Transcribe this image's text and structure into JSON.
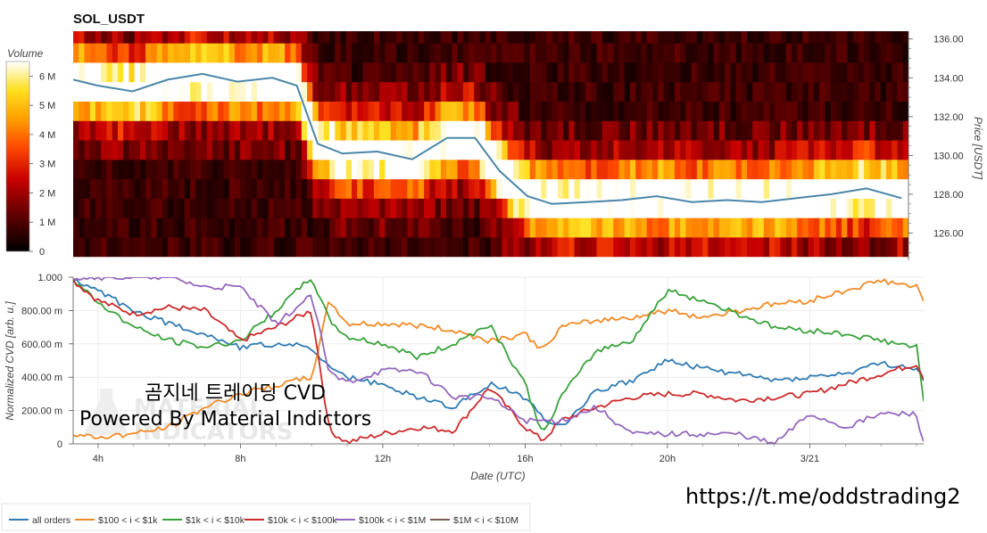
{
  "chart_data": [
    {
      "type": "heatmap",
      "title": "SOL_USDT",
      "colorbar": {
        "label": "Volume",
        "ticks": [
          "0",
          "1 M",
          "2 M",
          "3 M",
          "4 M",
          "5 M",
          "6 M"
        ],
        "range": [
          0,
          6500000
        ]
      },
      "ylabel": "Price [USDT]",
      "yticks": [
        "126.00",
        "128.00",
        "130.00",
        "132.00",
        "134.00",
        "136.00"
      ],
      "ylim": [
        124.6,
        136.4
      ],
      "price_bins": [
        125.3,
        126.3,
        127.3,
        128.3,
        129.3,
        130.3,
        131.3,
        132.3,
        133.3,
        134.3,
        135.3,
        136.3
      ],
      "time_range_hours": [
        3.3,
        27.2
      ],
      "price_series": {
        "name": "Price",
        "color": "#4a86a8",
        "x_hours": [
          3.3,
          4.0,
          5.0,
          6.0,
          7.0,
          8.0,
          9.0,
          9.7,
          10.3,
          11.0,
          12.0,
          13.0,
          14.0,
          14.8,
          15.5,
          16.3,
          17.0,
          18.0,
          19.0,
          20.0,
          21.0,
          22.0,
          23.0,
          24.0,
          25.0,
          26.0,
          27.0
        ],
        "y": [
          133.9,
          133.6,
          133.3,
          133.9,
          134.2,
          133.8,
          134.0,
          133.6,
          130.6,
          130.1,
          130.2,
          129.8,
          130.9,
          130.9,
          129.2,
          127.9,
          127.5,
          127.6,
          127.7,
          127.9,
          127.6,
          127.7,
          127.6,
          127.8,
          128.0,
          128.3,
          127.8
        ]
      }
    },
    {
      "type": "line",
      "xlabel": "Date (UTC)",
      "ylabel": "Normalized CVD [arb. u.]",
      "xticks": [
        "4h",
        "8h",
        "12h",
        "16h",
        "20h",
        "3/21"
      ],
      "xtick_hours": [
        4,
        8,
        12,
        16,
        20,
        24
      ],
      "yticks": [
        "0",
        "200.00 m",
        "400.00 m",
        "600.00 m",
        "800.00 m",
        "1.000"
      ],
      "ylim": [
        0,
        1
      ],
      "xlim": [
        3.3,
        27.2
      ],
      "x_hours": [
        3.3,
        4,
        5,
        6,
        7,
        8,
        9,
        10,
        10.5,
        11,
        12,
        13,
        14,
        15,
        16,
        16.5,
        17,
        18,
        19,
        20,
        21,
        22,
        23,
        24,
        25,
        26,
        27,
        27.2
      ],
      "series": [
        {
          "name": "all orders",
          "color": "#2f7bb3",
          "values": [
            0.98,
            0.92,
            0.8,
            0.72,
            0.66,
            0.58,
            0.6,
            0.58,
            0.45,
            0.4,
            0.35,
            0.28,
            0.22,
            0.36,
            0.28,
            0.16,
            0.1,
            0.32,
            0.38,
            0.5,
            0.45,
            0.42,
            0.38,
            0.4,
            0.42,
            0.48,
            0.45,
            0.37
          ]
        },
        {
          "name": "$100 < i < $1k",
          "color": "#f08a24",
          "values": [
            0.05,
            0.04,
            0.06,
            0.1,
            0.22,
            0.3,
            0.35,
            0.4,
            0.86,
            0.72,
            0.72,
            0.71,
            0.68,
            0.62,
            0.66,
            0.56,
            0.7,
            0.74,
            0.76,
            0.8,
            0.76,
            0.8,
            0.84,
            0.86,
            0.92,
            0.98,
            0.94,
            0.85
          ]
        },
        {
          "name": "$1k < i < $10k",
          "color": "#38a23a",
          "values": [
            0.98,
            0.85,
            0.7,
            0.62,
            0.58,
            0.62,
            0.8,
            1.0,
            0.74,
            0.64,
            0.6,
            0.52,
            0.6,
            0.72,
            0.36,
            0.05,
            0.28,
            0.56,
            0.62,
            0.92,
            0.86,
            0.78,
            0.7,
            0.68,
            0.66,
            0.62,
            0.58,
            0.25
          ]
        },
        {
          "name": "$10k < i < $100k",
          "color": "#cc2a2a",
          "values": [
            0.98,
            0.86,
            0.78,
            0.82,
            0.8,
            0.62,
            0.7,
            0.8,
            0.08,
            0.01,
            0.06,
            0.1,
            0.08,
            0.34,
            0.1,
            0.02,
            0.14,
            0.22,
            0.28,
            0.3,
            0.3,
            0.26,
            0.28,
            0.3,
            0.36,
            0.42,
            0.48,
            0.4
          ]
        },
        {
          "name": "$100k < i < $1M",
          "color": "#9467bd",
          "values": [
            1.0,
            1.0,
            1.0,
            1.0,
            0.94,
            0.94,
            0.72,
            0.89,
            0.42,
            0.37,
            0.44,
            0.44,
            0.28,
            0.28,
            0.14,
            0.14,
            0.14,
            0.22,
            0.06,
            0.06,
            0.06,
            0.06,
            0.0,
            0.18,
            0.1,
            0.18,
            0.18,
            0.0
          ]
        },
        {
          "name": "$1M < i < $10M",
          "color": "#7f5c53",
          "values": []
        }
      ]
    }
  ],
  "overlay": {
    "line1": "곰지네 트레이딩 CVD",
    "line2": "Powered By Material Indictors",
    "watermark_line1": "MATERIAL",
    "watermark_line2": "INDICATORS",
    "url": "https://t.me/oddstrading2"
  }
}
